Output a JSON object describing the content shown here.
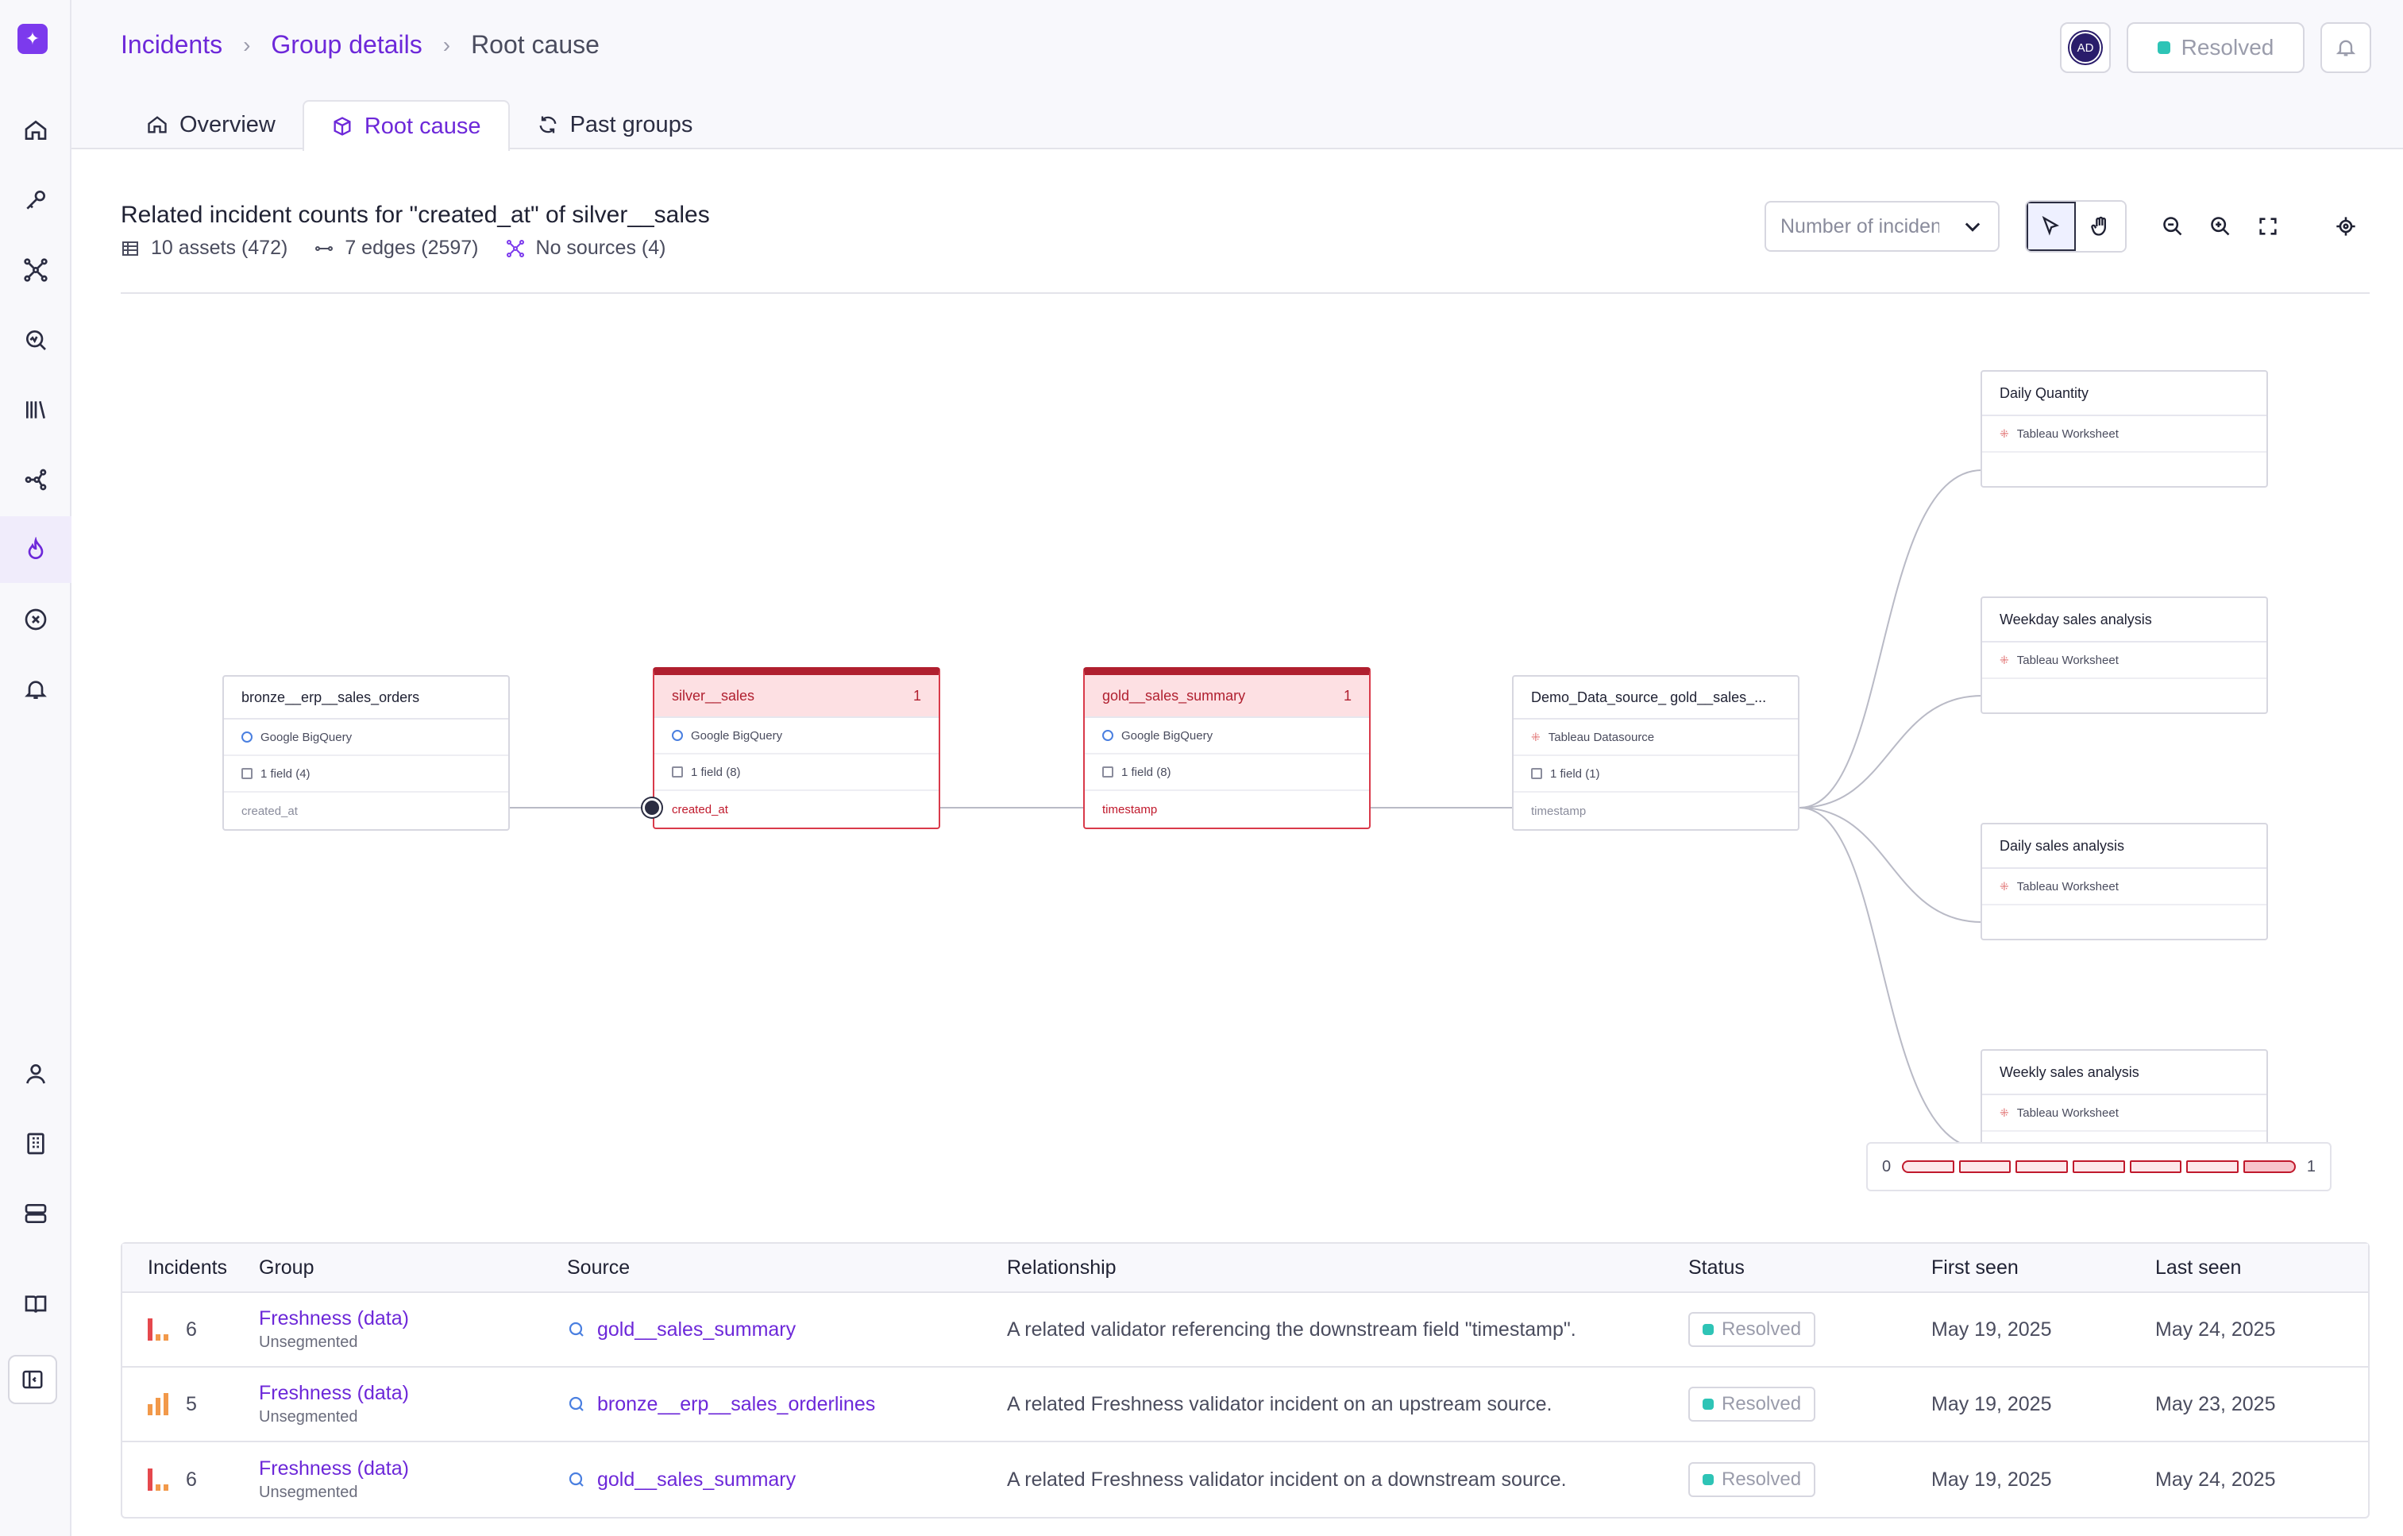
{
  "breadcrumb": {
    "incidents": "Incidents",
    "group_details": "Group details",
    "current": "Root cause"
  },
  "header": {
    "avatar_initials": "AD",
    "status_label": "Resolved"
  },
  "tabs": [
    {
      "label": "Overview"
    },
    {
      "label": "Root cause"
    },
    {
      "label": "Past groups"
    }
  ],
  "lineage": {
    "title": "Related incident counts for \"created_at\" of silver__sales",
    "assets": "10 assets (472)",
    "edges": "7 edges (2597)",
    "sources": "No sources (4)",
    "metric_select": "Number of incidents"
  },
  "nodes": {
    "bronze": {
      "name": "bronze__erp__sales_orders",
      "type": "Google BigQuery",
      "fields": "1 field (4)",
      "field": "created_at"
    },
    "silver": {
      "name": "silver__sales",
      "count": "1",
      "type": "Google BigQuery",
      "fields": "1 field (8)",
      "field": "created_at"
    },
    "gold": {
      "name": "gold__sales_summary",
      "count": "1",
      "type": "Google BigQuery",
      "fields": "1 field (8)",
      "field": "timestamp"
    },
    "demo": {
      "name": "Demo_Data_source_ gold__sales_...",
      "type": "Tableau Datasource",
      "fields": "1 field (1)",
      "field": "timestamp"
    },
    "daily_quantity": {
      "name": "Daily Quantity",
      "type": "Tableau Worksheet"
    },
    "weekday_sales": {
      "name": "Weekday sales analysis",
      "type": "Tableau Worksheet"
    },
    "daily_sales": {
      "name": "Daily sales analysis",
      "type": "Tableau Worksheet"
    },
    "weekly_sales": {
      "name": "Weekly sales analysis",
      "type": "Tableau Worksheet"
    }
  },
  "legend": {
    "min": "0",
    "max": "1"
  },
  "table": {
    "headers": {
      "incidents": "Incidents",
      "group": "Group",
      "source": "Source",
      "relationship": "Relationship",
      "status": "Status",
      "first_seen": "First seen",
      "last_seen": "Last seen"
    },
    "rows": [
      {
        "incidents": "6",
        "group": "Freshness (data)",
        "segment": "Unsegmented",
        "source": "gold__sales_summary",
        "relationship": "A related validator referencing the downstream field \"timestamp\".",
        "status": "Resolved",
        "first_seen": "May 19, 2025",
        "last_seen": "May 24, 2025"
      },
      {
        "incidents": "5",
        "group": "Freshness (data)",
        "segment": "Unsegmented",
        "source": "bronze__erp__sales_orderlines",
        "relationship": "A related Freshness validator incident on an upstream source.",
        "status": "Resolved",
        "first_seen": "May 19, 2025",
        "last_seen": "May 23, 2025"
      },
      {
        "incidents": "6",
        "group": "Freshness (data)",
        "segment": "Unsegmented",
        "source": "gold__sales_summary",
        "relationship": "A related Freshness validator incident on a downstream source.",
        "status": "Resolved",
        "first_seen": "May 19, 2025",
        "last_seen": "May 24, 2025"
      }
    ]
  },
  "colors": {
    "accent": "#6d28d9",
    "alert": "#c0192c",
    "resolved": "#2ec4b6"
  }
}
